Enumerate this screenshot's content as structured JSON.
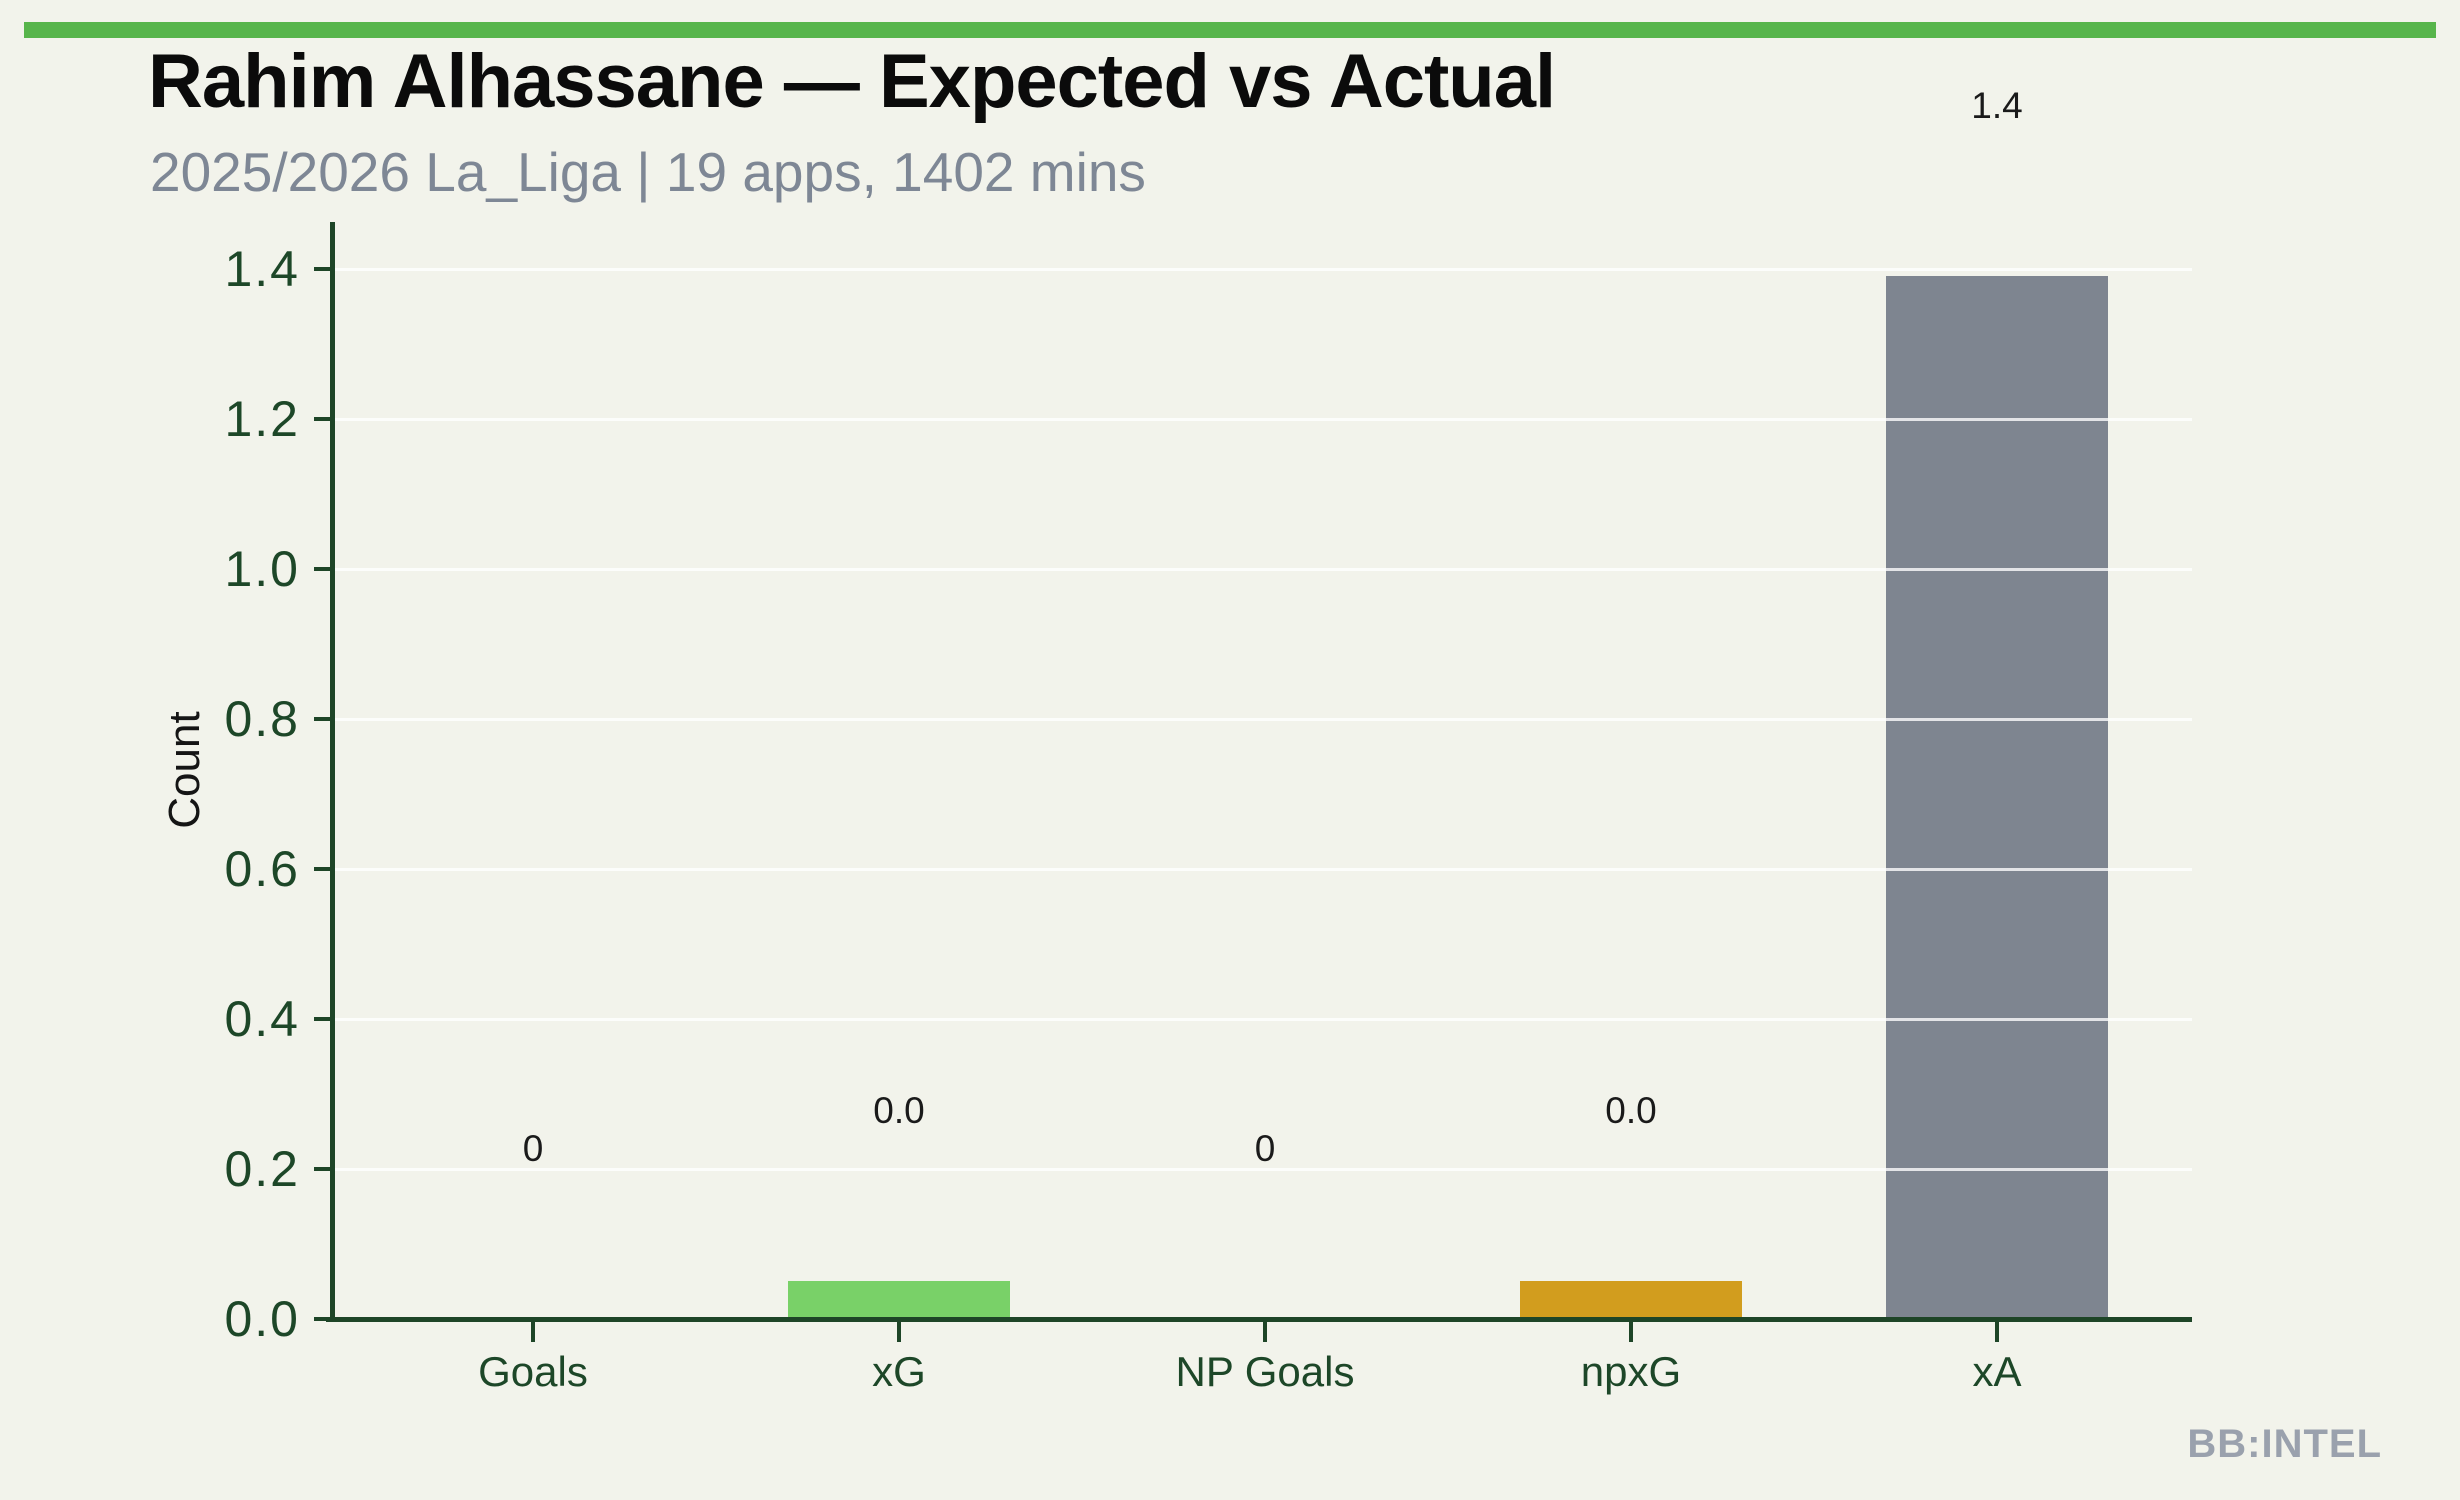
{
  "page": {
    "background_color": "#f2f3eb",
    "accent_bar_color": "#57b54b"
  },
  "header": {
    "title": "Rahim Alhassane — Expected vs Actual",
    "subtitle": "2025/2026 La_Liga | 19 apps, 1402 mins"
  },
  "watermark": {
    "brand": "BB:INTEL"
  },
  "chart_data": {
    "type": "bar",
    "title": "Rahim Alhassane — Expected vs Actual",
    "subtitle": "2025/2026 La_Liga | 19 apps, 1402 mins",
    "xlabel": "",
    "ylabel": "Count",
    "categories": [
      "Goals",
      "xG",
      "NP Goals",
      "npxG",
      "xA"
    ],
    "values": [
      0,
      0.05,
      0,
      0.05,
      1.39
    ],
    "bar_value_labels": [
      "0",
      "0.0",
      "0",
      "0.0",
      "1.4"
    ],
    "bar_colors": [
      "#79d168",
      "#79d168",
      "#d29d1e",
      "#d29d1e",
      "#7e8590"
    ],
    "yticks": [
      0.0,
      0.2,
      0.4,
      0.6,
      0.8,
      1.0,
      1.2,
      1.4
    ],
    "ytick_labels": [
      "0.0",
      "0.2",
      "0.4",
      "0.6",
      "0.8",
      "1.0",
      "1.2",
      "1.4"
    ],
    "ylim": [
      0,
      1.46
    ],
    "grid": "horizontal",
    "legend_position": "none",
    "axis_color": "#1e4527",
    "tick_label_color": "#1d4728",
    "grid_color": "rgba(255,255,255,0.78)",
    "bar_label_color": "#1a1a1a"
  }
}
